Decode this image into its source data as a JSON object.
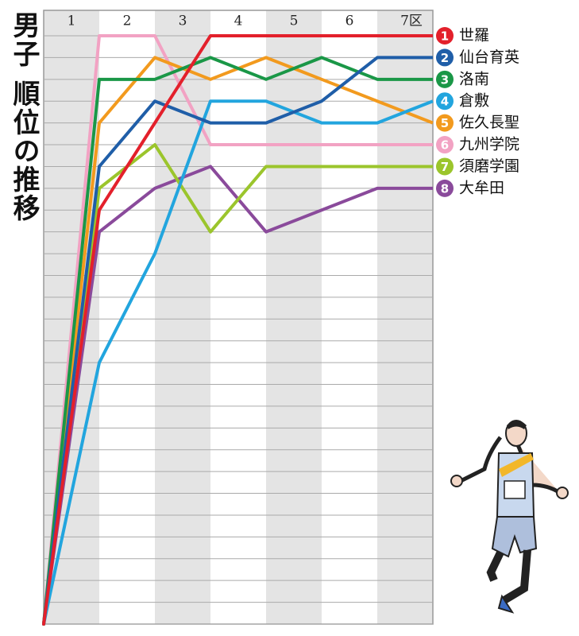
{
  "chart_data": {
    "type": "line",
    "title": "男子 順位の推移",
    "categories": [
      "1",
      "2",
      "3",
      "4",
      "5",
      "6",
      "7区"
    ],
    "ylim": [
      1,
      28
    ],
    "yticks": [
      1,
      2,
      3,
      4,
      5,
      6,
      7,
      8,
      9,
      10,
      11,
      12,
      13,
      14,
      15,
      16,
      17,
      18,
      19,
      20,
      21,
      22,
      23,
      24,
      25,
      26,
      27,
      28
    ],
    "grid": true,
    "series": [
      {
        "rank": "1",
        "name": "世羅",
        "color": "#e3202b",
        "values": [
          9,
          5,
          1,
          1,
          1,
          1,
          1
        ]
      },
      {
        "rank": "2",
        "name": "仙台育英",
        "color": "#1f5ea8",
        "values": [
          7,
          4,
          5,
          5,
          4,
          2,
          2
        ]
      },
      {
        "rank": "3",
        "name": "洛南",
        "color": "#1a9747",
        "values": [
          3,
          3,
          2,
          3,
          2,
          3,
          3
        ]
      },
      {
        "rank": "4",
        "name": "倉敷",
        "color": "#22a5de",
        "values": [
          16,
          11,
          4,
          4,
          5,
          5,
          4
        ]
      },
      {
        "rank": "5",
        "name": "佐久長聖",
        "color": "#f29a1e",
        "values": [
          5,
          2,
          3,
          2,
          3,
          4,
          5
        ]
      },
      {
        "rank": "6",
        "name": "九州学院",
        "color": "#f2a2c3",
        "values": [
          1,
          1,
          6,
          6,
          6,
          6,
          6
        ]
      },
      {
        "rank": "7",
        "name": "須磨学園",
        "color": "#9bc52c",
        "values": [
          8,
          6,
          10,
          7,
          7,
          7,
          7
        ]
      },
      {
        "rank": "8",
        "name": "大牟田",
        "color": "#8a4a9b",
        "values": [
          10,
          8,
          7,
          10,
          9,
          8,
          8
        ]
      }
    ]
  }
}
